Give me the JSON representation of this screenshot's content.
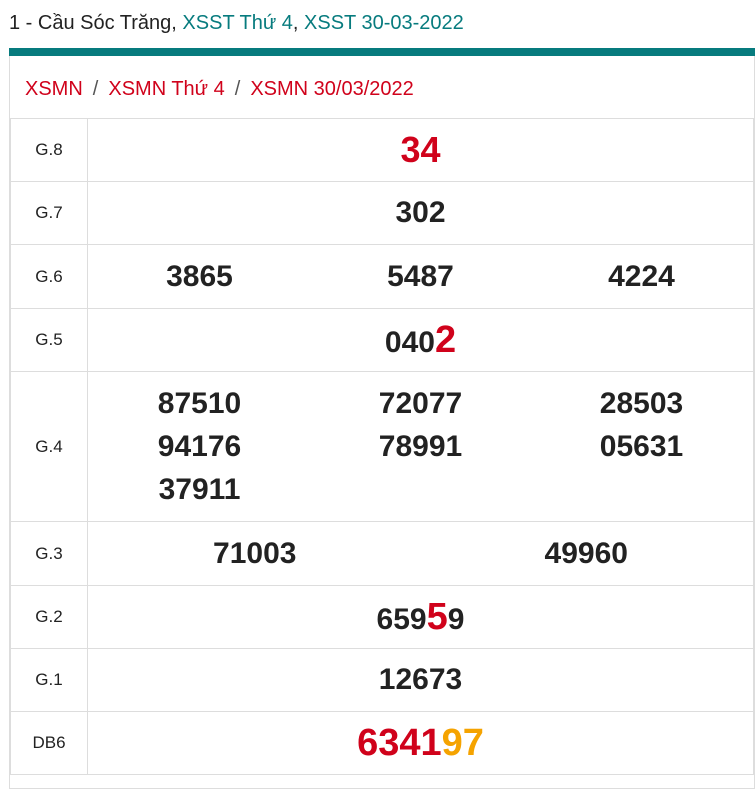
{
  "title": {
    "prefix": "1 - Cầu Sóc Trăng, ",
    "link1": "XSST Thứ 4",
    "sep": ", ",
    "link2": "XSST 30-03-2022"
  },
  "breadcrumb": [
    "XSMN",
    "XSMN Thứ 4",
    "XSMN 30/03/2022"
  ],
  "breadcrumb_sep": "/",
  "colors": {
    "accent": "#077b7e",
    "red": "#d0021b",
    "orange": "#f5a300"
  },
  "prizes": {
    "g8": {
      "label": "G.8",
      "values": [
        "34"
      ]
    },
    "g7": {
      "label": "G.7",
      "values": [
        "302"
      ]
    },
    "g6": {
      "label": "G.6",
      "values": [
        "3865",
        "5487",
        "4224"
      ]
    },
    "g5": {
      "label": "G.5",
      "head": "040",
      "tail": "2"
    },
    "g4": {
      "label": "G.4",
      "values": [
        "87510",
        "72077",
        "28503",
        "94176",
        "78991",
        "05631",
        "37911"
      ]
    },
    "g3": {
      "label": "G.3",
      "values": [
        "71003",
        "49960"
      ]
    },
    "g2": {
      "label": "G.2",
      "head": "659",
      "mid": "5",
      "tail": "9"
    },
    "g1": {
      "label": "G.1",
      "values": [
        "12673"
      ]
    },
    "db": {
      "label": "DB6",
      "head": "6341",
      "tail": "97"
    }
  }
}
